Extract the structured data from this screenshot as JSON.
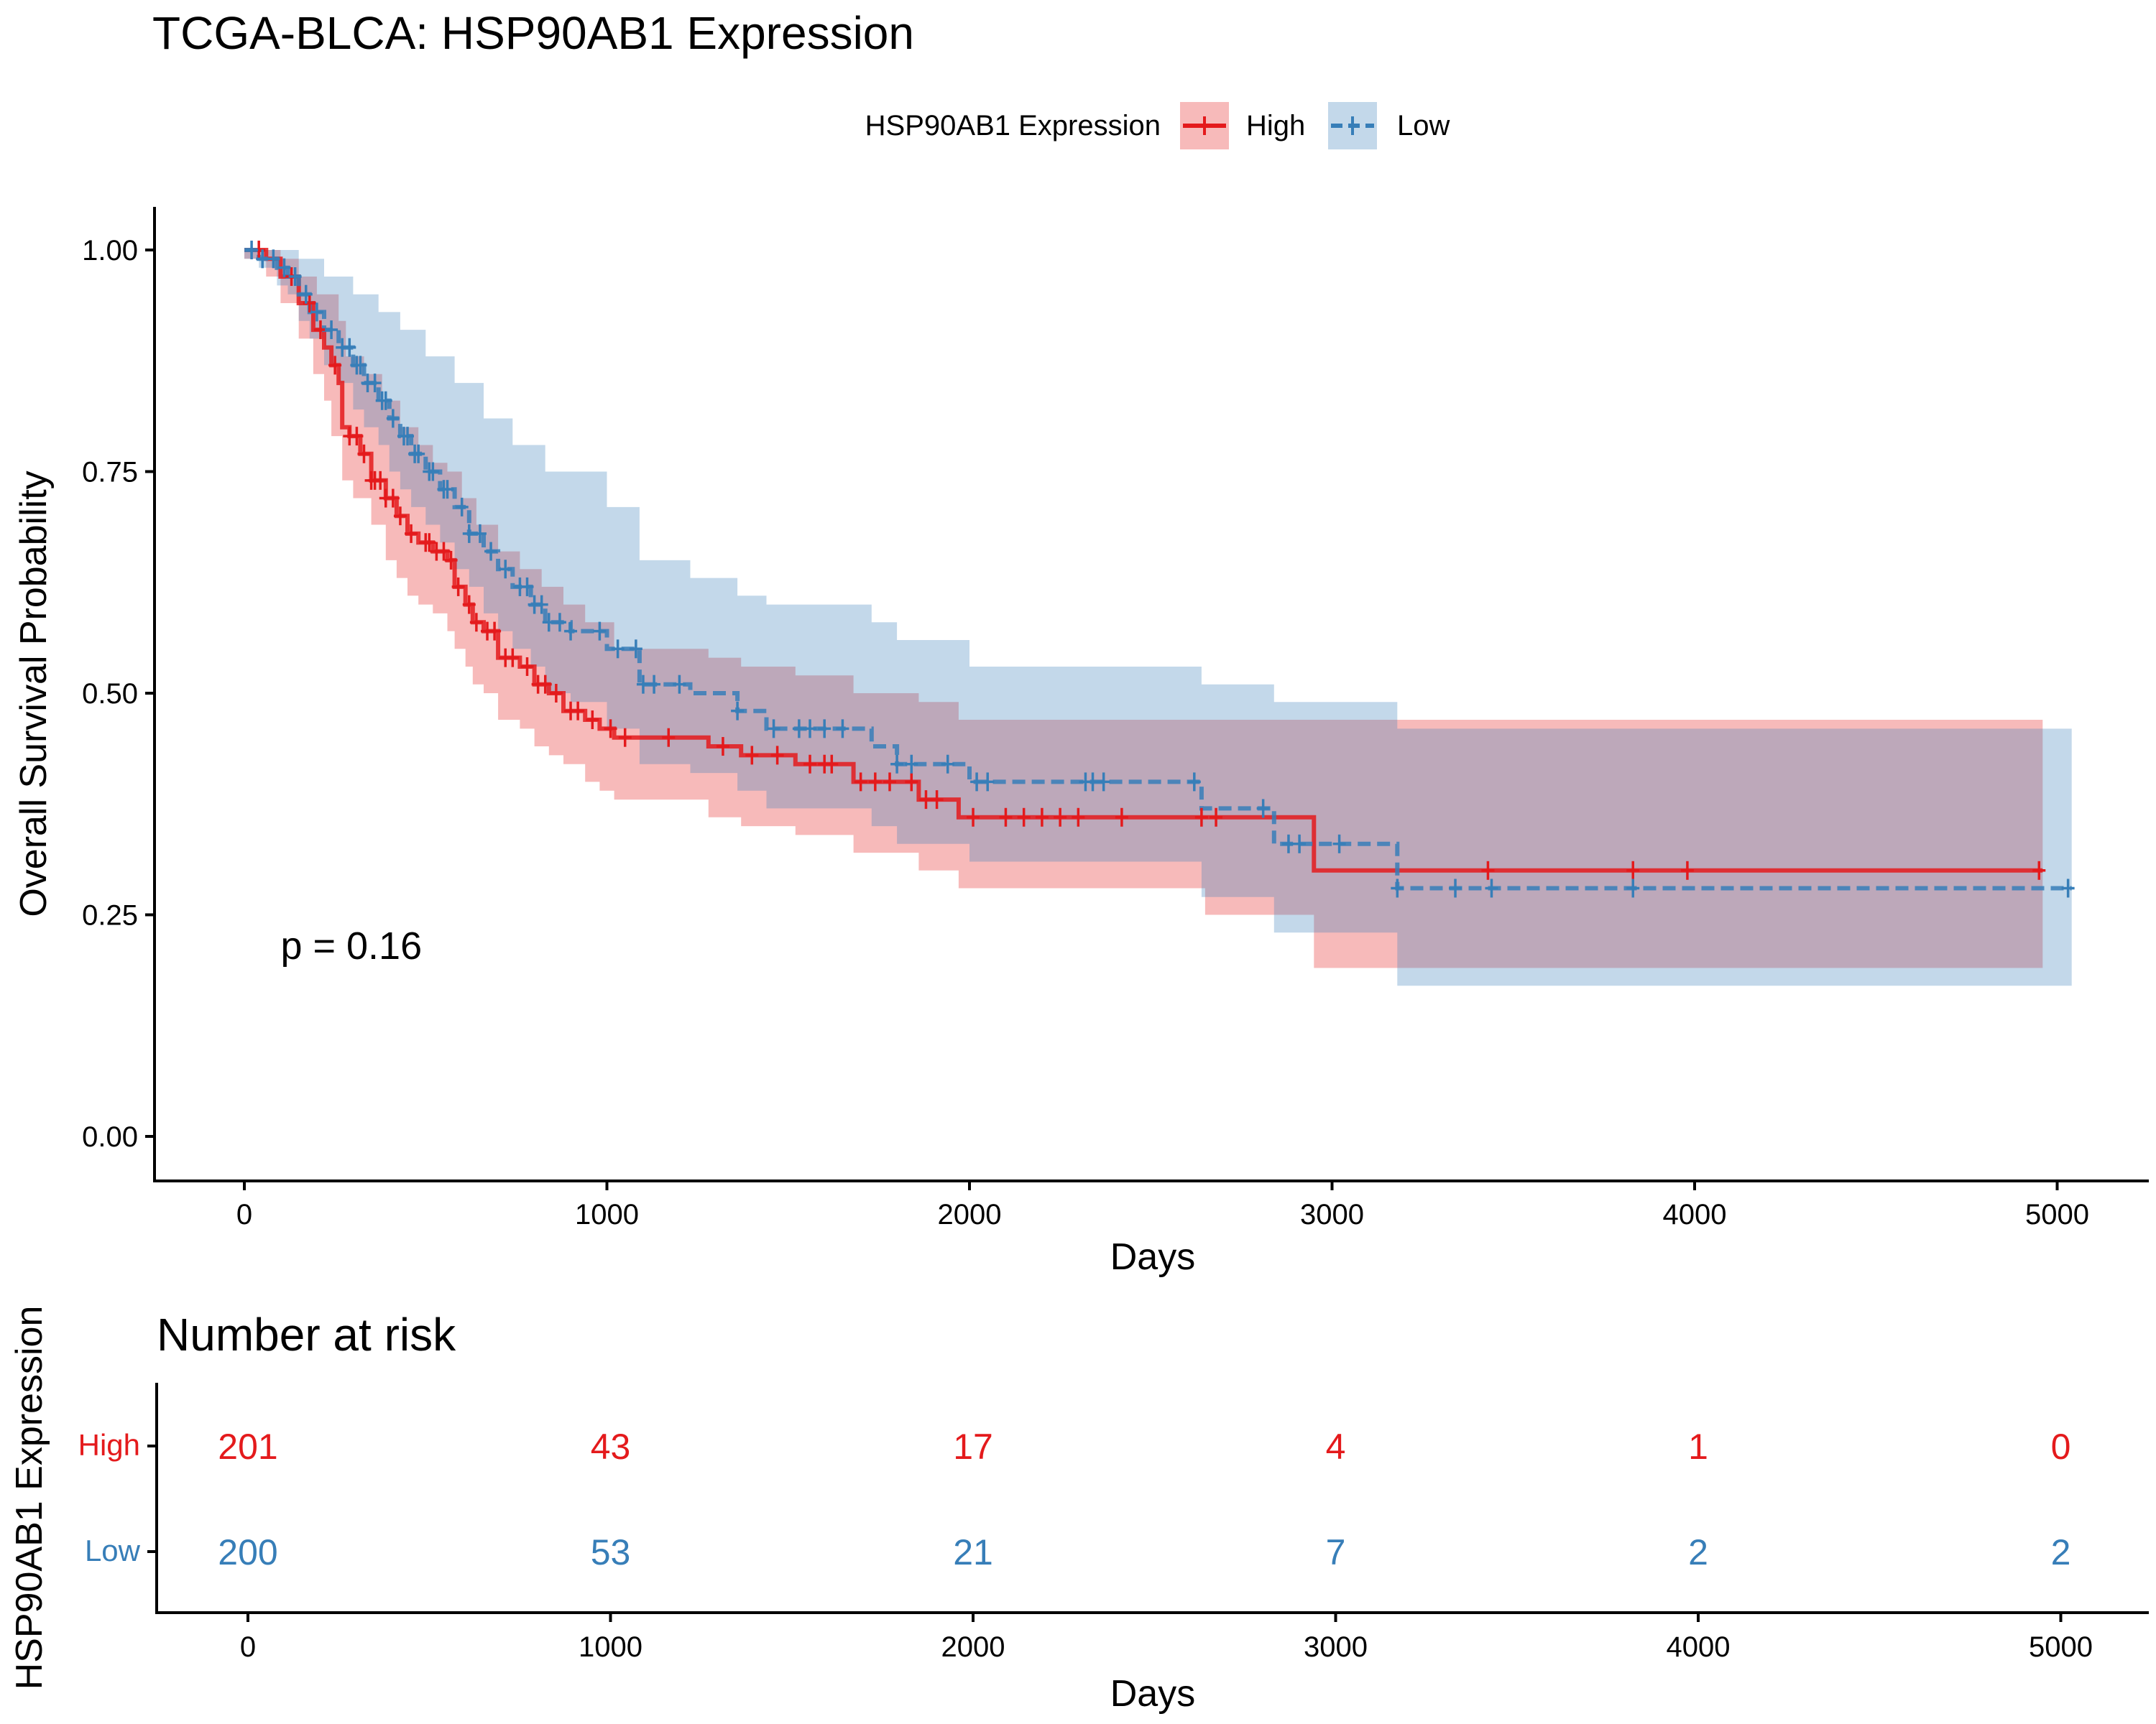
{
  "chart_data": [
    {
      "type": "line",
      "subtype": "kaplan-meier",
      "title": "TCGA-BLCA: HSP90AB1 Expression",
      "xlabel": "Days",
      "ylabel": "Overall Survival Probability",
      "xlim": [
        -250,
        5250
      ],
      "ylim": [
        -0.05,
        1.05
      ],
      "x_ticks": [
        0,
        1000,
        2000,
        3000,
        4000,
        5000
      ],
      "x_tick_labels": [
        "0",
        "1000",
        "2000",
        "3000",
        "4000",
        "5000"
      ],
      "y_ticks": [
        0,
        0.25,
        0.5,
        0.75,
        1.0
      ],
      "y_tick_labels": [
        "0.00",
        "0.25",
        "0.50",
        "0.75",
        "1.00"
      ],
      "grid": false,
      "legend": {
        "title": "HSP90AB1 Expression",
        "position": "top"
      },
      "annotation": "p = 0.16",
      "annotation_position": {
        "x": 100,
        "y": 0.2
      },
      "series": [
        {
          "name": "High",
          "color": "#e41a1c",
          "line_style": "solid",
          "steps": [
            [
              0,
              1.0
            ],
            [
              60,
              0.99
            ],
            [
              100,
              0.97
            ],
            [
              150,
              0.94
            ],
            [
              190,
              0.91
            ],
            [
              220,
              0.89
            ],
            [
              240,
              0.87
            ],
            [
              260,
              0.85
            ],
            [
              270,
              0.8
            ],
            [
              290,
              0.79
            ],
            [
              320,
              0.77
            ],
            [
              350,
              0.74
            ],
            [
              390,
              0.72
            ],
            [
              420,
              0.7
            ],
            [
              450,
              0.68
            ],
            [
              480,
              0.67
            ],
            [
              520,
              0.66
            ],
            [
              560,
              0.65
            ],
            [
              580,
              0.62
            ],
            [
              610,
              0.6
            ],
            [
              630,
              0.58
            ],
            [
              660,
              0.57
            ],
            [
              700,
              0.54
            ],
            [
              760,
              0.53
            ],
            [
              800,
              0.51
            ],
            [
              840,
              0.5
            ],
            [
              880,
              0.48
            ],
            [
              940,
              0.47
            ],
            [
              980,
              0.46
            ],
            [
              1020,
              0.45
            ],
            [
              1160,
              0.45
            ],
            [
              1280,
              0.44
            ],
            [
              1370,
              0.43
            ],
            [
              1520,
              0.42
            ],
            [
              1680,
              0.4
            ],
            [
              1860,
              0.38
            ],
            [
              1970,
              0.36
            ],
            [
              2650,
              0.36
            ],
            [
              2950,
              0.3
            ],
            [
              4960,
              0.3
            ]
          ],
          "ci_upper": [
            [
              0,
              1.0
            ],
            [
              100,
              0.99
            ],
            [
              150,
              0.97
            ],
            [
              200,
              0.95
            ],
            [
              260,
              0.92
            ],
            [
              280,
              0.88
            ],
            [
              330,
              0.86
            ],
            [
              380,
              0.83
            ],
            [
              430,
              0.8
            ],
            [
              480,
              0.78
            ],
            [
              520,
              0.76
            ],
            [
              560,
              0.75
            ],
            [
              600,
              0.72
            ],
            [
              640,
              0.69
            ],
            [
              700,
              0.66
            ],
            [
              760,
              0.64
            ],
            [
              820,
              0.62
            ],
            [
              880,
              0.6
            ],
            [
              940,
              0.58
            ],
            [
              1020,
              0.55
            ],
            [
              1160,
              0.55
            ],
            [
              1280,
              0.54
            ],
            [
              1370,
              0.53
            ],
            [
              1520,
              0.52
            ],
            [
              1680,
              0.5
            ],
            [
              1860,
              0.49
            ],
            [
              1970,
              0.47
            ],
            [
              2650,
              0.47
            ],
            [
              2950,
              0.47
            ],
            [
              4960,
              0.46
            ]
          ],
          "ci_lower": [
            [
              0,
              0.99
            ],
            [
              60,
              0.97
            ],
            [
              100,
              0.94
            ],
            [
              150,
              0.9
            ],
            [
              190,
              0.86
            ],
            [
              220,
              0.83
            ],
            [
              240,
              0.79
            ],
            [
              270,
              0.74
            ],
            [
              300,
              0.72
            ],
            [
              350,
              0.69
            ],
            [
              390,
              0.65
            ],
            [
              420,
              0.63
            ],
            [
              450,
              0.61
            ],
            [
              480,
              0.6
            ],
            [
              520,
              0.59
            ],
            [
              560,
              0.57
            ],
            [
              580,
              0.55
            ],
            [
              610,
              0.53
            ],
            [
              630,
              0.51
            ],
            [
              660,
              0.5
            ],
            [
              700,
              0.47
            ],
            [
              760,
              0.46
            ],
            [
              800,
              0.44
            ],
            [
              840,
              0.43
            ],
            [
              880,
              0.42
            ],
            [
              940,
              0.4
            ],
            [
              980,
              0.39
            ],
            [
              1020,
              0.38
            ],
            [
              1280,
              0.36
            ],
            [
              1370,
              0.35
            ],
            [
              1520,
              0.34
            ],
            [
              1680,
              0.32
            ],
            [
              1860,
              0.3
            ],
            [
              1970,
              0.28
            ],
            [
              2650,
              0.25
            ],
            [
              2950,
              0.19
            ],
            [
              4960,
              0.19
            ]
          ],
          "censor_x": [
            40,
            130,
            180,
            210,
            250,
            290,
            310,
            330,
            350,
            360,
            375,
            390,
            410,
            430,
            460,
            500,
            510,
            530,
            550,
            570,
            590,
            620,
            640,
            670,
            690,
            720,
            740,
            780,
            810,
            830,
            860,
            900,
            920,
            960,
            1010,
            1050,
            1170,
            1320,
            1400,
            1470,
            1560,
            1600,
            1620,
            1700,
            1740,
            1780,
            1840,
            1880,
            1910,
            2010,
            2100,
            2150,
            2200,
            2250,
            2300,
            2420,
            2640,
            2680,
            3430,
            3830,
            3980,
            4950
          ]
        },
        {
          "name": "Low",
          "color": "#377eb8",
          "line_style": "dashed",
          "steps": [
            [
              0,
              1.0
            ],
            [
              40,
              0.99
            ],
            [
              90,
              0.98
            ],
            [
              120,
              0.97
            ],
            [
              150,
              0.95
            ],
            [
              180,
              0.93
            ],
            [
              220,
              0.91
            ],
            [
              260,
              0.89
            ],
            [
              300,
              0.87
            ],
            [
              330,
              0.85
            ],
            [
              370,
              0.83
            ],
            [
              400,
              0.81
            ],
            [
              430,
              0.79
            ],
            [
              460,
              0.77
            ],
            [
              500,
              0.75
            ],
            [
              540,
              0.73
            ],
            [
              580,
              0.71
            ],
            [
              620,
              0.68
            ],
            [
              660,
              0.66
            ],
            [
              700,
              0.64
            ],
            [
              740,
              0.62
            ],
            [
              790,
              0.6
            ],
            [
              830,
              0.58
            ],
            [
              900,
              0.57
            ],
            [
              1000,
              0.55
            ],
            [
              1090,
              0.51
            ],
            [
              1230,
              0.5
            ],
            [
              1360,
              0.48
            ],
            [
              1440,
              0.46
            ],
            [
              1730,
              0.44
            ],
            [
              1800,
              0.42
            ],
            [
              2000,
              0.4
            ],
            [
              2640,
              0.37
            ],
            [
              2840,
              0.33
            ],
            [
              3180,
              0.28
            ],
            [
              5040,
              0.28
            ]
          ],
          "ci_upper": [
            [
              0,
              1.0
            ],
            [
              90,
              1.0
            ],
            [
              150,
              0.99
            ],
            [
              220,
              0.97
            ],
            [
              300,
              0.95
            ],
            [
              370,
              0.93
            ],
            [
              430,
              0.91
            ],
            [
              500,
              0.88
            ],
            [
              580,
              0.85
            ],
            [
              660,
              0.81
            ],
            [
              740,
              0.78
            ],
            [
              830,
              0.75
            ],
            [
              1000,
              0.71
            ],
            [
              1090,
              0.65
            ],
            [
              1230,
              0.63
            ],
            [
              1360,
              0.61
            ],
            [
              1440,
              0.6
            ],
            [
              1730,
              0.58
            ],
            [
              1800,
              0.56
            ],
            [
              2000,
              0.53
            ],
            [
              2640,
              0.51
            ],
            [
              2840,
              0.49
            ],
            [
              3180,
              0.46
            ],
            [
              5040,
              0.46
            ]
          ],
          "ci_lower": [
            [
              0,
              0.99
            ],
            [
              40,
              0.98
            ],
            [
              90,
              0.96
            ],
            [
              120,
              0.95
            ],
            [
              150,
              0.92
            ],
            [
              180,
              0.9
            ],
            [
              220,
              0.87
            ],
            [
              260,
              0.85
            ],
            [
              300,
              0.82
            ],
            [
              330,
              0.8
            ],
            [
              370,
              0.78
            ],
            [
              400,
              0.75
            ],
            [
              430,
              0.73
            ],
            [
              460,
              0.71
            ],
            [
              500,
              0.69
            ],
            [
              540,
              0.67
            ],
            [
              580,
              0.64
            ],
            [
              620,
              0.62
            ],
            [
              660,
              0.59
            ],
            [
              700,
              0.57
            ],
            [
              740,
              0.55
            ],
            [
              790,
              0.53
            ],
            [
              830,
              0.5
            ],
            [
              900,
              0.49
            ],
            [
              1000,
              0.46
            ],
            [
              1090,
              0.42
            ],
            [
              1230,
              0.41
            ],
            [
              1360,
              0.39
            ],
            [
              1440,
              0.37
            ],
            [
              1730,
              0.35
            ],
            [
              1800,
              0.33
            ],
            [
              2000,
              0.31
            ],
            [
              2640,
              0.27
            ],
            [
              2840,
              0.23
            ],
            [
              3180,
              0.17
            ],
            [
              5040,
              0.17
            ]
          ],
          "censor_x": [
            20,
            50,
            80,
            110,
            140,
            170,
            200,
            240,
            270,
            290,
            310,
            320,
            340,
            360,
            380,
            390,
            410,
            440,
            450,
            470,
            480,
            510,
            520,
            550,
            560,
            600,
            620,
            650,
            680,
            720,
            760,
            780,
            800,
            820,
            840,
            870,
            900,
            980,
            1030,
            1080,
            1100,
            1130,
            1200,
            1360,
            1460,
            1530,
            1560,
            1600,
            1650,
            1800,
            1840,
            1940,
            2020,
            2050,
            2320,
            2340,
            2370,
            2620,
            2810,
            2880,
            2910,
            3020,
            3180,
            3340,
            3440,
            3830,
            5030
          ]
        }
      ]
    },
    {
      "type": "table",
      "title": "Number at risk",
      "xlabel": "Days",
      "ylabel": "HSP90AB1 Expression",
      "x_ticks": [
        0,
        1000,
        2000,
        3000,
        4000,
        5000
      ],
      "x_tick_labels": [
        "0",
        "1000",
        "2000",
        "3000",
        "4000",
        "5000"
      ],
      "rows": [
        {
          "name": "High",
          "color": "#e41a1c",
          "values": [
            201,
            43,
            17,
            4,
            1,
            0
          ]
        },
        {
          "name": "Low",
          "color": "#377eb8",
          "values": [
            200,
            53,
            21,
            7,
            2,
            2
          ]
        }
      ]
    }
  ]
}
